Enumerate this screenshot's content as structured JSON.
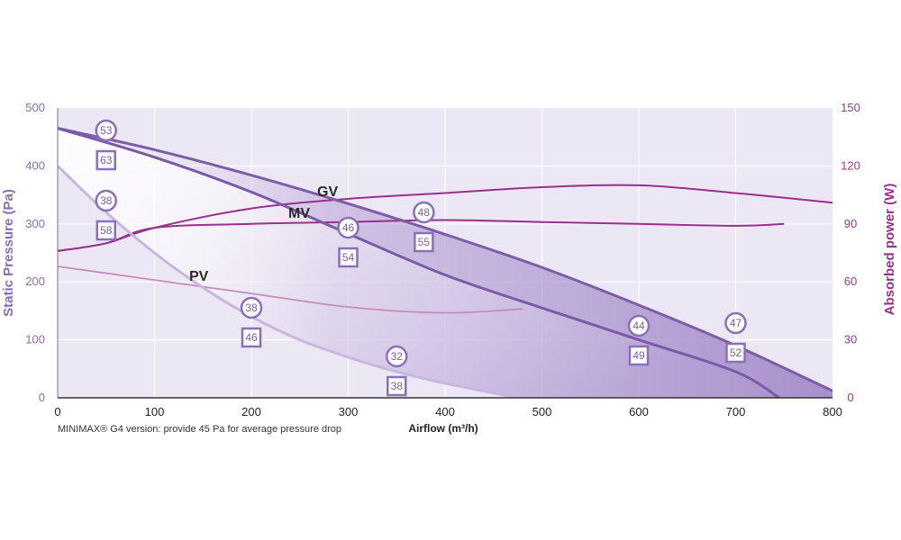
{
  "chart_data": {
    "type": "line",
    "xlabel": "Airflow (m³/h)",
    "ylabel": "Static Pressure (Pa)",
    "y2label": "Absorbed power (W)",
    "xlim": [
      0,
      800
    ],
    "ylim": [
      0,
      500
    ],
    "y2lim": [
      0,
      150
    ],
    "x_ticks": [
      "0",
      "100",
      "200",
      "300",
      "400",
      "500",
      "600",
      "700",
      "800"
    ],
    "y_ticks": [
      "0",
      "100",
      "200",
      "300",
      "400",
      "500"
    ],
    "y2_ticks": [
      "0",
      "30",
      "60",
      "90",
      "120",
      "150"
    ],
    "grid": true,
    "footnote": "MINIMAX® G4 version: provide 45 Pa for average pressure drop",
    "curve_labels": [
      "GV",
      "MV",
      "PV"
    ],
    "pressure_curves": [
      {
        "name": "GV",
        "points": [
          [
            0,
            465
          ],
          [
            100,
            428
          ],
          [
            200,
            384
          ],
          [
            300,
            335
          ],
          [
            400,
            282
          ],
          [
            500,
            225
          ],
          [
            600,
            160
          ],
          [
            700,
            90
          ],
          [
            800,
            12
          ]
        ]
      },
      {
        "name": "MV",
        "points": [
          [
            0,
            465
          ],
          [
            100,
            415
          ],
          [
            200,
            355
          ],
          [
            300,
            283
          ],
          [
            400,
            212
          ],
          [
            500,
            155
          ],
          [
            600,
            100
          ],
          [
            700,
            45
          ],
          [
            745,
            0
          ]
        ]
      },
      {
        "name": "PV",
        "points": [
          [
            0,
            400
          ],
          [
            50,
            320
          ],
          [
            100,
            250
          ],
          [
            150,
            190
          ],
          [
            200,
            140
          ],
          [
            250,
            100
          ],
          [
            300,
            70
          ],
          [
            350,
            45
          ],
          [
            400,
            25
          ],
          [
            475,
            0
          ]
        ]
      }
    ],
    "power_curves": [
      {
        "name": "GV",
        "points": [
          [
            0,
            76
          ],
          [
            50,
            80
          ],
          [
            100,
            88
          ],
          [
            200,
            98
          ],
          [
            300,
            103
          ],
          [
            400,
            106
          ],
          [
            500,
            109
          ],
          [
            600,
            110
          ],
          [
            700,
            106
          ],
          [
            800,
            101
          ]
        ]
      },
      {
        "name": "MV",
        "points": [
          [
            0,
            76
          ],
          [
            50,
            80
          ],
          [
            100,
            88
          ],
          [
            200,
            90
          ],
          [
            300,
            91
          ],
          [
            400,
            92
          ],
          [
            500,
            91
          ],
          [
            600,
            90
          ],
          [
            700,
            89
          ],
          [
            750,
            90
          ]
        ]
      },
      {
        "name": "PV",
        "points": [
          [
            0,
            68
          ],
          [
            100,
            61
          ],
          [
            200,
            54
          ],
          [
            300,
            47
          ],
          [
            400,
            44
          ],
          [
            480,
            46
          ]
        ]
      }
    ],
    "markers": [
      {
        "x": 50,
        "circle": "53",
        "square": "63"
      },
      {
        "x": 50,
        "circle": "38",
        "square": "58"
      },
      {
        "x": 200,
        "circle": "38",
        "square": "46"
      },
      {
        "x": 300,
        "circle": "46",
        "square": "54"
      },
      {
        "x": 350,
        "circle": "32",
        "square": "38"
      },
      {
        "x": 378,
        "circle": "48",
        "square": "55"
      },
      {
        "x": 600,
        "circle": "44",
        "square": "49"
      },
      {
        "x": 700,
        "circle": "47",
        "square": "52"
      }
    ],
    "colors": {
      "pressure_gv": "#7d5ca8",
      "pressure_mv": "#7a5aa6",
      "pressure_pv": "#c9b6e0",
      "power_gv": "#9a2f8c",
      "power_mv": "#9a2f8c",
      "power_pv": "#c88ab8",
      "left_axis": "#8a6cb0",
      "right_axis": "#9a2f8c",
      "plot_bg": "#ece7f4",
      "fill_dark": "#a48cc8",
      "marker": "#8a70b6"
    }
  }
}
